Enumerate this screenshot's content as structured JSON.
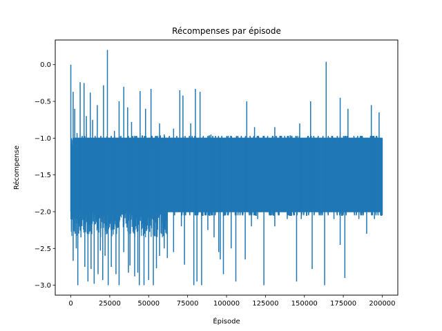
{
  "chart_data": {
    "type": "line",
    "title": "Récompenses par épisode",
    "xlabel": "Épisode",
    "ylabel": "Récompense",
    "xlim": [
      -10000,
      210000
    ],
    "ylim": [
      -3.135,
      0.335
    ],
    "grid": false,
    "legend": "none",
    "color": "#1f77b4",
    "x_ticks": [
      0,
      25000,
      50000,
      75000,
      100000,
      125000,
      150000,
      175000,
      200000
    ],
    "x_tick_labels": [
      "0",
      "25000",
      "50000",
      "75000",
      "100000",
      "125000",
      "150000",
      "175000",
      "200000"
    ],
    "y_ticks": [
      0.0,
      -0.5,
      -1.0,
      -1.5,
      -2.0,
      -2.5,
      -3.0
    ],
    "y_tick_labels": [
      "0.0",
      "−0.5",
      "−1.0",
      "−1.5",
      "−2.0",
      "−2.5",
      "−3.0"
    ],
    "series": [
      {
        "x_range": [
          0,
          200000
        ],
        "band": [
          -2.0,
          -1.0
        ],
        "peaks": [
          [
            0,
            0.0
          ],
          [
            1500,
            -0.37
          ],
          [
            2500,
            -0.6
          ],
          [
            4000,
            -0.93
          ],
          [
            6000,
            -0.24
          ],
          [
            8500,
            -0.25
          ],
          [
            10000,
            -0.7
          ],
          [
            12500,
            -0.38
          ],
          [
            14000,
            -0.75
          ],
          [
            17000,
            -0.55
          ],
          [
            21000,
            -0.28
          ],
          [
            23500,
            0.2
          ],
          [
            28000,
            -0.9
          ],
          [
            31000,
            -0.5
          ],
          [
            34000,
            -0.3
          ],
          [
            36500,
            -0.58
          ],
          [
            39000,
            -0.78
          ],
          [
            44500,
            -0.36
          ],
          [
            48000,
            -0.6
          ],
          [
            51500,
            -0.33
          ],
          [
            57000,
            -0.8
          ],
          [
            60000,
            -0.95
          ],
          [
            66000,
            -0.87
          ],
          [
            70000,
            -0.35
          ],
          [
            72000,
            -0.42
          ],
          [
            77000,
            -0.8
          ],
          [
            80000,
            -0.33
          ],
          [
            83000,
            -0.37
          ],
          [
            90000,
            -0.95
          ],
          [
            113000,
            -0.5
          ],
          [
            118000,
            -0.85
          ],
          [
            131000,
            -0.85
          ],
          [
            147000,
            -0.8
          ],
          [
            154000,
            -0.5
          ],
          [
            164000,
            0.04
          ],
          [
            173000,
            -0.45
          ],
          [
            178000,
            -0.6
          ],
          [
            193000,
            -0.55
          ],
          [
            198000,
            -0.65
          ]
        ],
        "troughs": [
          [
            500,
            -2.2
          ],
          [
            1500,
            -2.67
          ],
          [
            3500,
            -2.5
          ],
          [
            4500,
            -3.0
          ],
          [
            6500,
            -2.35
          ],
          [
            9000,
            -2.75
          ],
          [
            11000,
            -2.95
          ],
          [
            13000,
            -2.78
          ],
          [
            15000,
            -2.98
          ],
          [
            17500,
            -2.85
          ],
          [
            19000,
            -2.53
          ],
          [
            20500,
            -2.93
          ],
          [
            22000,
            -2.6
          ],
          [
            24000,
            -3.0
          ],
          [
            26000,
            -2.75
          ],
          [
            29000,
            -2.85
          ],
          [
            31000,
            -3.0
          ],
          [
            34000,
            -2.55
          ],
          [
            37000,
            -2.83
          ],
          [
            38000,
            -2.73
          ],
          [
            41000,
            -2.88
          ],
          [
            43000,
            -2.83
          ],
          [
            44000,
            -3.0
          ],
          [
            47000,
            -3.0
          ],
          [
            50000,
            -2.93
          ],
          [
            53000,
            -3.0
          ],
          [
            55000,
            -2.77
          ],
          [
            57000,
            -2.6
          ],
          [
            60000,
            -2.5
          ],
          [
            62000,
            -2.63
          ],
          [
            66000,
            -2.55
          ],
          [
            71000,
            -2.2
          ],
          [
            73000,
            -2.72
          ],
          [
            79000,
            -3.0
          ],
          [
            81000,
            -2.95
          ],
          [
            84000,
            -3.0
          ],
          [
            88000,
            -2.25
          ],
          [
            92000,
            -2.35
          ],
          [
            95000,
            -2.55
          ],
          [
            96000,
            -2.65
          ],
          [
            98000,
            -2.85
          ],
          [
            103000,
            -2.5
          ],
          [
            106000,
            -2.95
          ],
          [
            112000,
            -2.65
          ],
          [
            116000,
            -2.2
          ],
          [
            120000,
            -2.1
          ],
          [
            124000,
            -3.0
          ],
          [
            131000,
            -2.2
          ],
          [
            139000,
            -2.1
          ],
          [
            145000,
            -2.95
          ],
          [
            148000,
            -2.1
          ],
          [
            155000,
            -2.78
          ],
          [
            163000,
            -3.0
          ],
          [
            169000,
            -2.1
          ],
          [
            173000,
            -2.45
          ],
          [
            176000,
            -2.9
          ],
          [
            185000,
            -2.1
          ],
          [
            190000,
            -2.3
          ],
          [
            195000,
            -2.1
          ]
        ]
      }
    ]
  }
}
